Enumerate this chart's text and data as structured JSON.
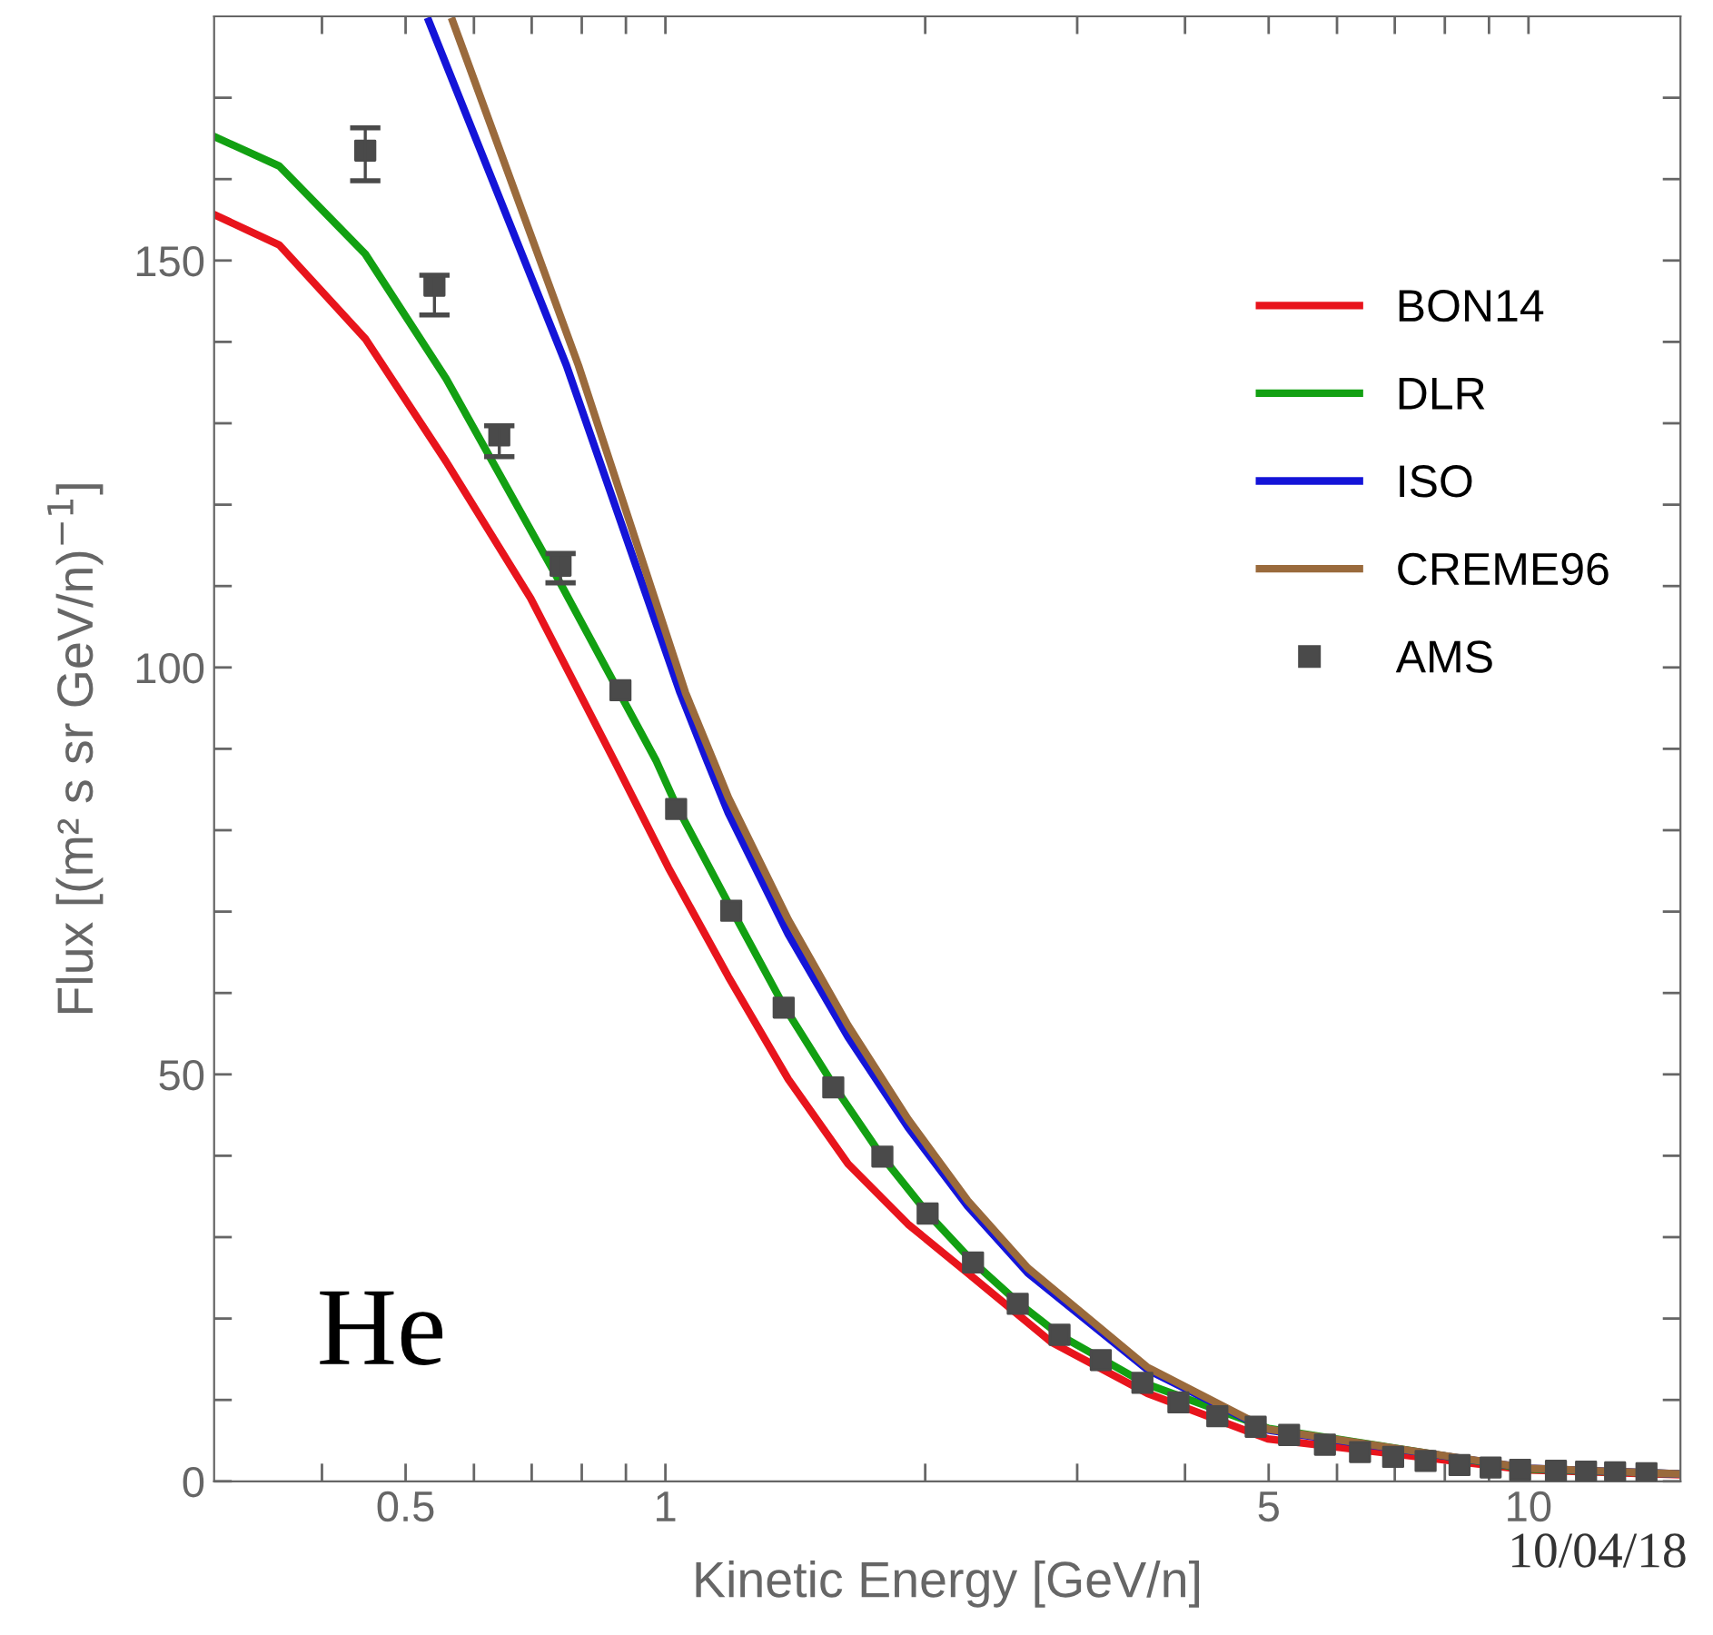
{
  "chart_data": {
    "type": "line",
    "xlabel": "Kinetic Energy [GeV/n]",
    "ylabel": "Flux [(m² s sr GeV/n)$^{−1}$]",
    "log": "x",
    "xlim": [
      0.3,
      15
    ],
    "ylim": [
      0,
      180
    ],
    "xticks": [
      {
        "value": 0.4,
        "label": null
      },
      {
        "value": 0.5,
        "label": "0.5"
      },
      {
        "value": 0.6,
        "label": null
      },
      {
        "value": 0.7,
        "label": null
      },
      {
        "value": 0.8,
        "label": null
      },
      {
        "value": 0.9,
        "label": null
      },
      1,
      {
        "value": 2,
        "label": null
      },
      {
        "value": 3,
        "label": null
      },
      {
        "value": 4,
        "label": null
      },
      5,
      {
        "value": 6,
        "label": null
      },
      {
        "value": 7,
        "label": null
      },
      {
        "value": 8,
        "label": null
      },
      {
        "value": 9,
        "label": null
      },
      10
    ],
    "yticks": [
      0,
      {
        "value": 10,
        "label": null
      },
      {
        "value": 20,
        "label": null
      },
      {
        "value": 30,
        "label": null
      },
      {
        "value": 40,
        "label": null
      },
      50,
      {
        "value": 60,
        "label": null
      },
      {
        "value": 70,
        "label": null
      },
      {
        "value": 80,
        "label": null
      },
      {
        "value": 90,
        "label": null
      },
      100,
      {
        "value": 110,
        "label": null
      },
      {
        "value": 120,
        "label": null
      },
      {
        "value": 130,
        "label": null
      },
      {
        "value": 140,
        "label": null
      },
      150,
      {
        "value": 160,
        "label": null
      },
      {
        "value": 170,
        "label": null
      }
    ],
    "grid": false,
    "legend": "right",
    "series": [
      {
        "name": "BON14",
        "color": "#e8141c",
        "x": [
          0.302,
          0.357,
          0.449,
          0.557,
          0.698,
          0.873,
          1.008,
          1.183,
          1.388,
          1.628,
          1.91,
          2.24,
          2.8,
          3.62,
          4.99,
          10,
          15
        ],
        "values": [
          155.5,
          151.9,
          140.4,
          125.3,
          108.5,
          88.5,
          75.4,
          62.0,
          49.4,
          39.0,
          31.6,
          25.6,
          17.1,
          10.8,
          5.2,
          1.4,
          0.8
        ]
      },
      {
        "name": "DLR",
        "color": "#12a012",
        "x": [
          0.302,
          0.357,
          0.449,
          0.557,
          0.756,
          0.976,
          1.03,
          1.19,
          1.37,
          1.57,
          1.78,
          2.01,
          2.27,
          2.56,
          2.86,
          3.6,
          5,
          10,
          15
        ],
        "values": [
          165.1,
          161.6,
          150.8,
          135.5,
          110.3,
          88.5,
          83,
          70.5,
          58.5,
          48.5,
          40,
          33,
          27,
          22,
          18,
          12,
          6.5,
          1.5,
          0.9
        ]
      },
      {
        "name": "ISO",
        "color": "#1414d8",
        "x": [
          0.532,
          0.768,
          1.04,
          1.118,
          1.183,
          1.388,
          1.628,
          1.91,
          2.24,
          2.63,
          3.62,
          4.99,
          10,
          15
        ],
        "values": [
          179.4,
          137.1,
          96.9,
          88.5,
          82.1,
          67.2,
          54.6,
          43.5,
          33.8,
          25.6,
          13.7,
          6.3,
          1.6,
          0.9
        ]
      },
      {
        "name": "CREME96",
        "color": "#9a6a3c",
        "x": [
          0.567,
          0.793,
          1.055,
          1.137,
          1.183,
          1.388,
          1.628,
          1.91,
          2.24,
          2.63,
          3.62,
          4.99,
          10,
          15
        ],
        "values": [
          179.4,
          137.1,
          96.9,
          88.5,
          84,
          69,
          56,
          44.5,
          34.5,
          26.2,
          14,
          6.4,
          1.6,
          0.9
        ]
      },
      {
        "name": "AMS",
        "type": "scatter",
        "marker": "square",
        "color": "#4a4a4a",
        "x": [
          0.449,
          0.54,
          0.642,
          0.756,
          0.887,
          1.029,
          1.192,
          1.371,
          1.565,
          1.784,
          2.013,
          2.272,
          2.56,
          2.862,
          3.195,
          3.57,
          3.93,
          4.36,
          4.83,
          5.28,
          5.81,
          6.38,
          6.97,
          7.6,
          8.32,
          9.04,
          9.78,
          10.76,
          11.66,
          12.6,
          13.7
        ],
        "values": [
          163.5,
          146.9,
          128.5,
          112.5,
          97.2,
          82.6,
          70.1,
          58.2,
          48.4,
          39.9,
          32.9,
          26.9,
          21.8,
          18.0,
          14.9,
          12.1,
          9.7,
          8.0,
          6.7,
          5.7,
          4.5,
          3.6,
          3.0,
          2.5,
          2.0,
          1.7,
          1.4,
          1.3,
          1.2,
          1.1,
          1.0
        ],
        "errors": [
          [
            159.8,
            166.3
          ],
          [
            143.3,
            148.2
          ],
          [
            125.9,
            129.7
          ],
          [
            110.4,
            114.0
          ],
          null,
          null,
          null,
          null,
          null,
          null,
          null,
          null,
          null,
          null,
          null,
          null,
          null,
          null,
          null,
          null,
          null,
          null,
          null,
          null,
          null,
          null,
          null,
          null,
          null,
          null,
          null
        ]
      }
    ],
    "annotations": [
      "He",
      "10/04/18"
    ]
  }
}
